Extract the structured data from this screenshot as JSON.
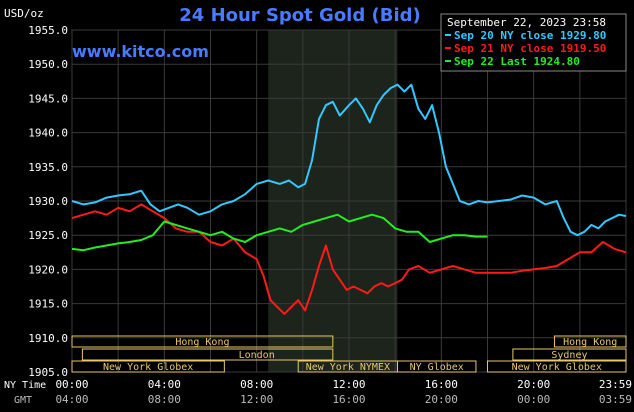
{
  "header": {
    "title": "24 Hour Spot Gold (Bid)",
    "date_stamp": "September 22, 2023 23:58",
    "site": "www.kitco.com",
    "unit": "USD/oz"
  },
  "legend": [
    {
      "label": "Sep 20 NY close 1929.80",
      "color": "#33c8ff"
    },
    {
      "label": "Sep 21 NY close 1919.50",
      "color": "#ff1a1a"
    },
    {
      "label": "Sep 22 Last 1924.80",
      "color": "#22ee22"
    }
  ],
  "colors": {
    "background": "#000000",
    "plot_bg": "#000000",
    "grid": "#3a3a3a",
    "axis_text": "#ffffff",
    "title": "#4a7bff",
    "site": "#4a7bff",
    "session_shade": "#1c241c",
    "market_box": "#e8c96a"
  },
  "axis_labels": {
    "x_top_caption": "NY Time",
    "x_bottom_caption": "GMT"
  },
  "markets": [
    {
      "name": "Hong Kong",
      "row": 1
    },
    {
      "name": "London",
      "row": 2
    },
    {
      "name": "New York Globex",
      "row": 3
    },
    {
      "name": "New York NYMEX",
      "row": 3
    },
    {
      "name": "NY Globex",
      "row": 3
    },
    {
      "name": "Hong Kong",
      "row": 1
    },
    {
      "name": "Sydney",
      "row": 2
    },
    {
      "name": "New York Globex",
      "row": 3
    }
  ],
  "chart_data": {
    "type": "line",
    "title": "24 Hour Spot Gold (Bid)",
    "ylabel": "USD/oz",
    "ylim": [
      1905.0,
      1955.0
    ],
    "xlim": [
      0,
      24
    ],
    "yticks": [
      "1905.0",
      "1910.0",
      "1915.0",
      "1920.0",
      "1925.0",
      "1930.0",
      "1935.0",
      "1940.0",
      "1945.0",
      "1950.0",
      "1955.0"
    ],
    "xticks_ny": [
      "00:00",
      "04:00",
      "08:00",
      "12:00",
      "16:00",
      "20:00",
      "23:59"
    ],
    "xticks_gmt": [
      "04:00",
      "08:00",
      "12:00",
      "16:00",
      "20:00",
      "00:00",
      "03:59"
    ],
    "grid": true,
    "legend_position": "top-right",
    "series": [
      {
        "name": "Sep 20 NY close 1929.80",
        "color": "#33c8ff",
        "x": [
          0,
          0.5,
          1,
          1.5,
          2,
          2.5,
          3,
          3.4,
          3.8,
          4.2,
          4.6,
          5,
          5.5,
          6,
          6.5,
          7,
          7.5,
          8,
          8.5,
          9,
          9.4,
          9.8,
          10.1,
          10.4,
          10.7,
          11,
          11.3,
          11.6,
          12,
          12.3,
          12.6,
          12.9,
          13.2,
          13.5,
          13.8,
          14.1,
          14.4,
          14.7,
          15,
          15.3,
          15.6,
          15.9,
          16.2,
          16.5,
          16.8,
          17.2,
          17.6,
          18,
          18.5,
          19,
          19.5,
          20,
          20.5,
          21,
          21.3,
          21.6,
          21.9,
          22.2,
          22.5,
          22.8,
          23.1,
          23.4,
          23.7,
          24
        ],
        "values": [
          1930.0,
          1929.5,
          1929.8,
          1930.5,
          1930.8,
          1931.0,
          1931.5,
          1929.5,
          1928.5,
          1929.0,
          1929.5,
          1929.0,
          1928.0,
          1928.5,
          1929.5,
          1930.0,
          1931.0,
          1932.5,
          1933.0,
          1932.5,
          1933.0,
          1932.0,
          1932.5,
          1936.0,
          1942.0,
          1944.0,
          1944.5,
          1942.5,
          1944.0,
          1945.0,
          1943.5,
          1941.5,
          1944.0,
          1945.5,
          1946.5,
          1947.0,
          1946.0,
          1947.0,
          1943.5,
          1942.0,
          1944.0,
          1940.0,
          1935.0,
          1932.5,
          1930.0,
          1929.5,
          1930.0,
          1929.8,
          1930.0,
          1930.2,
          1930.8,
          1930.5,
          1929.5,
          1930.0,
          1927.5,
          1925.5,
          1925.0,
          1925.5,
          1926.5,
          1926.0,
          1927.0,
          1927.5,
          1928.0,
          1927.8
        ]
      },
      {
        "name": "Sep 21 NY close 1919.50",
        "color": "#ff1a1a",
        "x": [
          0,
          0.5,
          1,
          1.5,
          2,
          2.5,
          3,
          3.5,
          4,
          4.5,
          5,
          5.5,
          6,
          6.5,
          7,
          7.5,
          8,
          8.3,
          8.6,
          8.9,
          9.2,
          9.5,
          9.8,
          10.1,
          10.4,
          10.7,
          11,
          11.3,
          11.6,
          11.9,
          12.2,
          12.5,
          12.8,
          13.1,
          13.4,
          13.7,
          14,
          14.3,
          14.6,
          15,
          15.5,
          16,
          16.5,
          17,
          17.5,
          18,
          18.5,
          19,
          19.5,
          20,
          20.5,
          21,
          21.5,
          22,
          22.5,
          23,
          23.5,
          24
        ],
        "values": [
          1927.5,
          1928.0,
          1928.5,
          1928.0,
          1929.0,
          1928.5,
          1929.5,
          1928.5,
          1927.5,
          1926.0,
          1925.5,
          1925.5,
          1924.0,
          1923.5,
          1924.5,
          1922.5,
          1921.5,
          1919.0,
          1915.5,
          1914.5,
          1913.5,
          1914.5,
          1915.5,
          1914.0,
          1917.0,
          1920.5,
          1923.5,
          1920.0,
          1918.5,
          1917.0,
          1917.5,
          1917.0,
          1916.5,
          1917.5,
          1918.0,
          1917.5,
          1918.0,
          1918.5,
          1920.0,
          1920.5,
          1919.5,
          1920.0,
          1920.5,
          1920.0,
          1919.5,
          1919.5,
          1919.5,
          1919.5,
          1919.8,
          1920.0,
          1920.2,
          1920.5,
          1921.5,
          1922.5,
          1922.5,
          1924.0,
          1923.0,
          1922.5
        ]
      },
      {
        "name": "Sep 22 Last 1924.80",
        "color": "#22ee22",
        "x": [
          0,
          0.5,
          1,
          1.5,
          2,
          2.5,
          3,
          3.5,
          4,
          4.5,
          5,
          5.5,
          6,
          6.5,
          7,
          7.5,
          8,
          8.5,
          9,
          9.5,
          10,
          10.5,
          11,
          11.5,
          12,
          12.5,
          13,
          13.5,
          14,
          14.5,
          15,
          15.5,
          16,
          16.5,
          17,
          17.5,
          18
        ],
        "values": [
          1923.0,
          1922.8,
          1923.2,
          1923.5,
          1923.8,
          1924.0,
          1924.3,
          1925.0,
          1927.0,
          1926.5,
          1926.0,
          1925.5,
          1925.0,
          1925.5,
          1924.5,
          1924.0,
          1925.0,
          1925.5,
          1926.0,
          1925.5,
          1926.5,
          1927.0,
          1927.5,
          1928.0,
          1927.0,
          1927.5,
          1928.0,
          1927.5,
          1926.0,
          1925.5,
          1925.5,
          1924.0,
          1924.5,
          1925.0,
          1925.0,
          1924.8,
          1924.8
        ]
      }
    ]
  }
}
